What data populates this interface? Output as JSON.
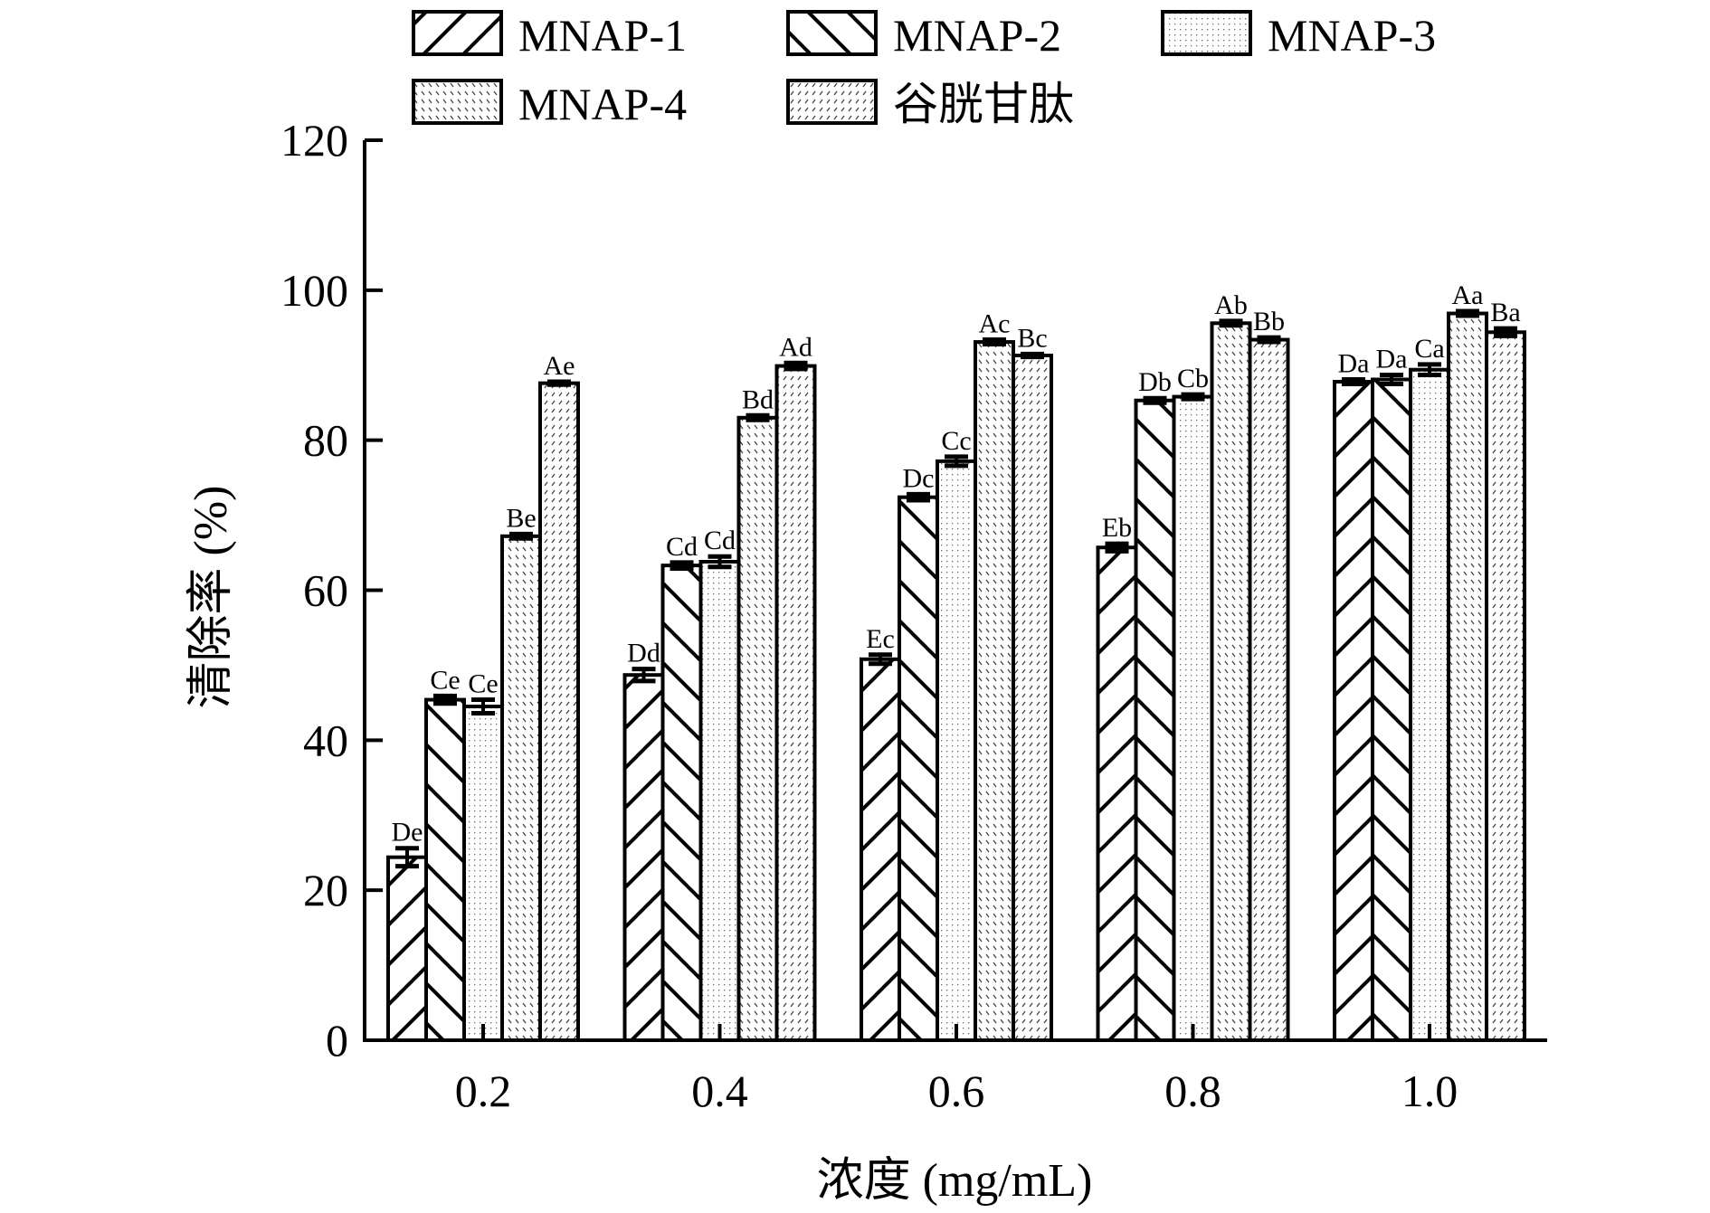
{
  "chart_data": {
    "type": "bar",
    "title": "",
    "xlabel": "浓度 (mg/mL)",
    "ylabel": "清除率 (%)",
    "ylim": [
      0,
      120
    ],
    "yticks": [
      0,
      20,
      40,
      60,
      80,
      100,
      120
    ],
    "ytick_labels": [
      "0",
      "20",
      "40",
      "60",
      "80",
      "100",
      "120"
    ],
    "categories": [
      "0.2",
      "0.4",
      "0.6",
      "0.8",
      "1.0"
    ],
    "grid": false,
    "legend_position": "top",
    "series": [
      {
        "name": "MNAP-1",
        "pattern": "hatch-forward",
        "values": [
          24.4,
          48.7,
          50.8,
          65.7,
          87.8
        ],
        "errors": [
          1.2,
          0.8,
          0.6,
          0.5,
          0.3
        ],
        "labels": [
          "De",
          "Dd",
          "Ec",
          "Eb",
          "Da"
        ]
      },
      {
        "name": "MNAP-2",
        "pattern": "hatch-back",
        "values": [
          45.4,
          63.3,
          72.4,
          85.3,
          88.1
        ],
        "errors": [
          0.5,
          0.4,
          0.4,
          0.3,
          0.6
        ],
        "labels": [
          "Ce",
          "Cd",
          "Dc",
          "Db",
          "Da"
        ]
      },
      {
        "name": "MNAP-3",
        "pattern": "dots",
        "values": [
          44.5,
          63.8,
          77.2,
          85.8,
          89.4
        ],
        "errors": [
          0.9,
          0.7,
          0.6,
          0.3,
          0.7
        ],
        "labels": [
          "Ce",
          "Cd",
          "Cc",
          "Cb",
          "Ca"
        ]
      },
      {
        "name": "MNAP-4",
        "pattern": "dash-back",
        "values": [
          67.2,
          83.0,
          93.1,
          95.6,
          96.9
        ],
        "errors": [
          0.3,
          0.3,
          0.3,
          0.3,
          0.3
        ],
        "labels": [
          "Be",
          "Bd",
          "Ac",
          "Ab",
          "Aa"
        ]
      },
      {
        "name": "谷胱甘肽",
        "pattern": "dash-forward",
        "values": [
          87.6,
          89.9,
          91.3,
          93.4,
          94.4
        ],
        "errors": [
          0.2,
          0.4,
          0.2,
          0.3,
          0.5
        ],
        "labels": [
          "Ae",
          "Ad",
          "Bc",
          "Bb",
          "Ba"
        ]
      }
    ]
  }
}
